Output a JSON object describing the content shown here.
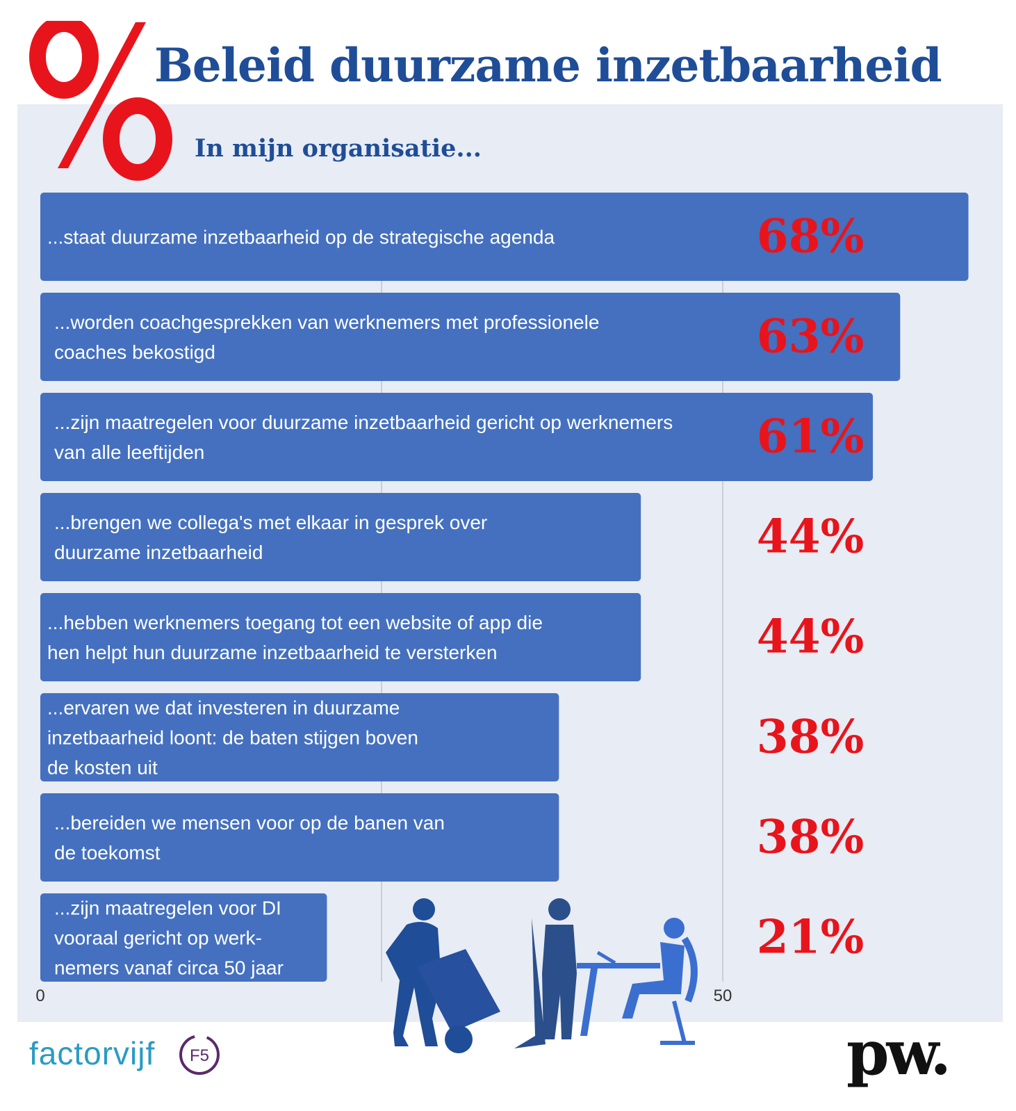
{
  "header": {
    "logo_symbol": "%",
    "title": "Beleid duurzame inzetbaarheid",
    "subtitle": "In mijn organisatie..."
  },
  "chart_data": {
    "type": "bar",
    "orientation": "horizontal",
    "title": "Beleid duurzame inzetbaarheid",
    "subtitle": "In mijn organisatie...",
    "categories": [
      [
        "...staat duurzame inzetbaarheid op de strategische agenda"
      ],
      [
        "...worden coachgesprekken van werknemers met professionele",
        "coaches bekostigd"
      ],
      [
        "...zijn maatregelen voor duurzame inzetbaarheid gericht op werknemers",
        "van alle leeftijden"
      ],
      [
        "...brengen we collega's met elkaar in gesprek over",
        "duurzame inzetbaarheid"
      ],
      [
        "...hebben werknemers toegang tot een website of app die",
        "hen helpt hun duurzame inzetbaarheid te versterken"
      ],
      [
        "...ervaren we dat investeren in  duurzame",
        "inzetbaarheid loont: de baten stijgen boven",
        "de kosten uit"
      ],
      [
        "...bereiden we mensen voor op de banen van",
        "de toekomst"
      ],
      [
        "...zijn maatregelen voor DI",
        "vooraal gericht op werk-",
        "nemers vanaf circa 50 jaar"
      ]
    ],
    "values": [
      68,
      63,
      61,
      44,
      44,
      38,
      38,
      21
    ],
    "value_labels": [
      "68%",
      "63%",
      "61%",
      "44%",
      "44%",
      "38%",
      "38%",
      "21%"
    ],
    "xlim": [
      0,
      68
    ],
    "xticks": [
      0,
      50
    ],
    "xtick_labels": [
      "0",
      "50"
    ],
    "gridlines": [
      25,
      50
    ],
    "colors": {
      "bar": "#4470bf",
      "value": "#e8141c",
      "title": "#1f4d97",
      "panel": "#e8ecf4"
    }
  },
  "footer": {
    "brand_left": "factorvijf",
    "badge": "F5",
    "brand_right": "pw."
  }
}
